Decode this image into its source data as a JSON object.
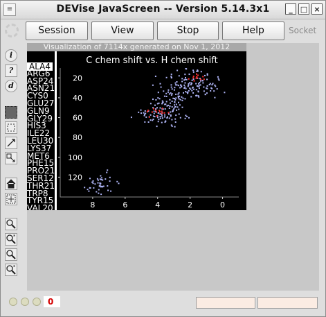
{
  "window": {
    "title": "DEVise JavaScreen -- Version 5.14.3x1"
  },
  "toolbar": {
    "session": "Session",
    "view": "View",
    "stop": "Stop",
    "help": "Help",
    "socket": "Socket"
  },
  "left_tools": [
    {
      "label": "i",
      "name": "info-icon"
    },
    {
      "label": "?",
      "name": "help-query-icon"
    },
    {
      "label": "d",
      "name": "data-icon"
    }
  ],
  "visualization": {
    "caption": "Visualization of 7114x generated on Nov 1, 2012",
    "residues": [
      "ALA4",
      "ARG6",
      "ASP24",
      "ASN21",
      "CYS0",
      "GLU27",
      "GLN9",
      "GLY29",
      "HIS3",
      "ILE22",
      "LEU30",
      "LYS37",
      "MET6",
      "PHE15",
      "PRO21",
      "SER12",
      "THR21",
      "TRP8",
      "TYR15",
      "VAL20"
    ],
    "selected_residue": "ALA4"
  },
  "chart_data": {
    "type": "scatter",
    "title": "C chem shift vs. H chem shift",
    "x_ticks": [
      8,
      6,
      4,
      2,
      0
    ],
    "y_ticks": [
      20,
      40,
      60,
      80,
      100,
      120
    ],
    "xlim": [
      10,
      -1
    ],
    "ylim": [
      10,
      140
    ],
    "series": [
      {
        "color": "#aeb4f5",
        "clusters": [
          {
            "x": 2.0,
            "y": 25,
            "sx": 0.8,
            "sy": 6,
            "n": 120
          },
          {
            "x": 3.7,
            "y": 55,
            "sx": 0.7,
            "sy": 6,
            "n": 90
          },
          {
            "x": 3.0,
            "y": 40,
            "sx": 0.6,
            "sy": 5,
            "n": 50
          },
          {
            "x": 7.5,
            "y": 126,
            "sx": 0.5,
            "sy": 6,
            "n": 45
          }
        ]
      },
      {
        "color": "#ff3030",
        "clusters": [
          {
            "x": 1.7,
            "y": 20,
            "sx": 0.3,
            "sy": 2,
            "n": 12
          },
          {
            "x": 4.1,
            "y": 53,
            "sx": 0.4,
            "sy": 2,
            "n": 15
          }
        ]
      }
    ]
  },
  "status": {
    "counter": "0",
    "field1": "",
    "field2": ""
  }
}
